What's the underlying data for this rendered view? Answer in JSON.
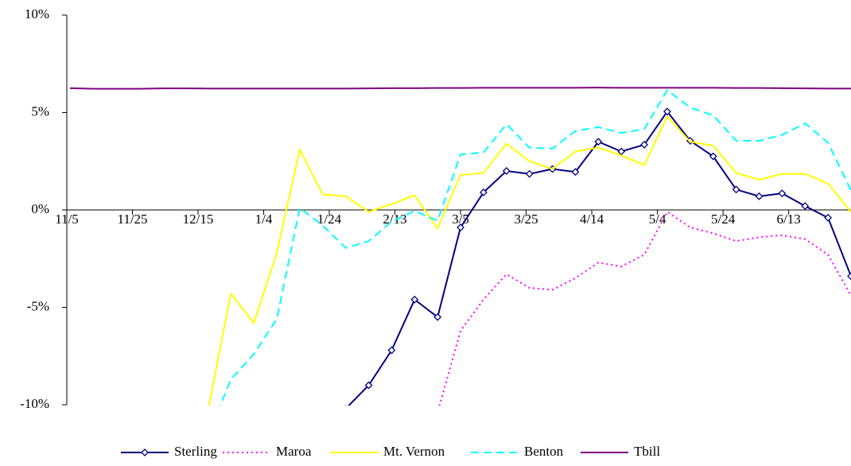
{
  "chart_data": {
    "type": "line",
    "x": [
      1,
      8,
      15,
      22,
      29,
      36,
      43,
      50,
      57,
      64,
      71,
      78,
      85,
      92,
      99,
      106,
      113,
      120,
      127,
      134,
      141,
      148,
      155,
      162,
      169,
      176,
      183,
      190,
      197,
      204,
      211,
      218,
      225,
      232,
      239
    ],
    "xlim": [
      0,
      239
    ],
    "xticks": [
      {
        "value": 0,
        "label": "11/5"
      },
      {
        "value": 20,
        "label": "11/25"
      },
      {
        "value": 40,
        "label": "12/15"
      },
      {
        "value": 60,
        "label": "1/4"
      },
      {
        "value": 80,
        "label": "1/24"
      },
      {
        "value": 100,
        "label": "2/13"
      },
      {
        "value": 120,
        "label": "3/5"
      },
      {
        "value": 140,
        "label": "3/25"
      },
      {
        "value": 160,
        "label": "4/14"
      },
      {
        "value": 180,
        "label": "5/4"
      },
      {
        "value": 200,
        "label": "5/24"
      },
      {
        "value": 220,
        "label": "6/13"
      }
    ],
    "ylim": [
      -10,
      10
    ],
    "yticks": [
      {
        "value": -10,
        "label": "-10%"
      },
      {
        "value": -5,
        "label": "-5%"
      },
      {
        "value": 0,
        "label": "0%"
      },
      {
        "value": 5,
        "label": "5%"
      },
      {
        "value": 10,
        "label": "10%"
      }
    ],
    "legend": "bottom",
    "series": [
      {
        "name": "Sterling",
        "color": "#000080",
        "style": "solid",
        "marker": "diamond",
        "values": [
          null,
          null,
          null,
          null,
          null,
          null,
          null,
          null,
          null,
          null,
          null,
          null,
          -10.2,
          -9.0,
          -7.2,
          -4.6,
          -5.5,
          -0.9,
          0.9,
          2.0,
          1.85,
          2.1,
          1.95,
          3.5,
          3.0,
          3.35,
          5.05,
          3.55,
          2.75,
          1.05,
          0.7,
          0.85,
          0.2,
          -0.4,
          -3.4
        ]
      },
      {
        "name": "Maroa",
        "color": "#ff00ff",
        "style": "dotted",
        "values": [
          null,
          null,
          null,
          null,
          null,
          null,
          null,
          null,
          null,
          null,
          null,
          null,
          null,
          null,
          -10.8,
          -10.1,
          -10.4,
          -6.2,
          -4.6,
          -3.3,
          -4.0,
          -4.1,
          -3.5,
          -2.7,
          -2.9,
          -2.3,
          -0.1,
          -0.9,
          -1.2,
          -1.6,
          -1.4,
          -1.3,
          -1.5,
          -2.3,
          -4.4
        ]
      },
      {
        "name": "Mt. Vernon",
        "color": "#ffff00",
        "style": "solid",
        "values": [
          null,
          null,
          null,
          null,
          null,
          null,
          -10.3,
          -4.3,
          -5.8,
          -2.2,
          3.1,
          0.8,
          0.7,
          -0.1,
          0.3,
          0.75,
          -0.95,
          1.8,
          1.9,
          3.4,
          2.5,
          2.1,
          3.0,
          3.2,
          2.8,
          2.3,
          4.8,
          3.5,
          3.3,
          1.9,
          1.55,
          1.85,
          1.85,
          1.35,
          -0.1
        ]
      },
      {
        "name": "Benton",
        "color": "#00ffff",
        "style": "dashed",
        "values": [
          null,
          null,
          null,
          null,
          null,
          null,
          -11.6,
          -8.7,
          -7.4,
          -5.6,
          0.1,
          -0.8,
          -1.95,
          -1.6,
          -0.6,
          -0.05,
          -0.55,
          2.85,
          2.95,
          4.4,
          3.2,
          3.15,
          4.05,
          4.25,
          3.95,
          4.15,
          6.15,
          5.25,
          4.85,
          3.55,
          3.55,
          3.85,
          4.45,
          3.45,
          1.0
        ]
      },
      {
        "name": "Tbill",
        "color": "#800080",
        "style": "solid",
        "values": [
          6.25,
          6.22,
          6.22,
          6.22,
          6.24,
          6.24,
          6.23,
          6.23,
          6.23,
          6.23,
          6.23,
          6.23,
          6.23,
          6.24,
          6.25,
          6.25,
          6.26,
          6.26,
          6.27,
          6.27,
          6.27,
          6.27,
          6.27,
          6.28,
          6.27,
          6.27,
          6.27,
          6.27,
          6.27,
          6.26,
          6.26,
          6.25,
          6.24,
          6.23,
          6.23
        ]
      }
    ]
  }
}
